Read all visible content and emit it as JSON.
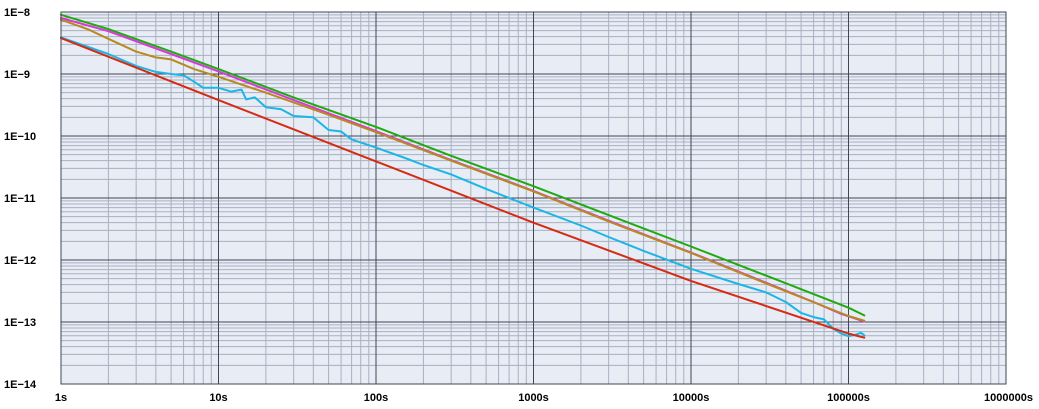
{
  "chart_data": {
    "type": "line",
    "log_x": true,
    "log_y": true,
    "xlim": [
      1,
      1000000
    ],
    "ylim": [
      1e-14,
      1e-08
    ],
    "grid": true,
    "minor_grid": true,
    "legend": "none",
    "x_ticks": [
      {
        "value": 1,
        "label": "1s"
      },
      {
        "value": 10,
        "label": "10s"
      },
      {
        "value": 100,
        "label": "100s"
      },
      {
        "value": 1000,
        "label": "1000s"
      },
      {
        "value": 10000,
        "label": "10000s"
      },
      {
        "value": 100000,
        "label": "100000s"
      },
      {
        "value": 1000000,
        "label": "1000000s"
      }
    ],
    "y_ticks": [
      {
        "value": 1e-08,
        "label": "1E−8"
      },
      {
        "value": 1e-09,
        "label": "1E−9"
      },
      {
        "value": 1e-10,
        "label": "1E−10"
      },
      {
        "value": 1e-11,
        "label": "1E−11"
      },
      {
        "value": 1e-12,
        "label": "1E−12"
      },
      {
        "value": 1e-13,
        "label": "1E−13"
      },
      {
        "value": 1e-14,
        "label": "1E−14"
      }
    ],
    "colors": {
      "plot_background": "#e8ecf5",
      "major_grid": "#3f4654",
      "minor_grid": "#a8b0c2"
    },
    "series": [
      {
        "color": "#1faa10",
        "x": [
          1,
          2,
          5,
          10,
          30,
          100,
          300,
          1000,
          3000,
          10000,
          30000,
          100000,
          126000
        ],
        "y": [
          9e-09,
          5.3e-09,
          2.3e-09,
          1.2e-09,
          4.2e-10,
          1.4e-10,
          4.8e-11,
          1.55e-11,
          5.3e-12,
          1.65e-12,
          5.6e-13,
          1.7e-13,
          1.28e-13
        ]
      },
      {
        "color": "#d838d8",
        "x": [
          1,
          2,
          5,
          10,
          30,
          100,
          300,
          1000,
          3000,
          10000,
          30000,
          60000,
          90000,
          126000
        ],
        "y": [
          8e-09,
          4.9e-09,
          2.1e-09,
          1.1e-09,
          3.8e-10,
          1.2e-10,
          4.1e-11,
          1.3e-11,
          4.3e-12,
          1.32e-12,
          4.3e-13,
          2.1e-13,
          1.35e-13,
          1.02e-13
        ]
      },
      {
        "color": "#b88a1e",
        "x": [
          1,
          1.5,
          2,
          3,
          4,
          5,
          7,
          10,
          20,
          50,
          100,
          300,
          1000,
          3000,
          10000,
          30000,
          100000,
          126000
        ],
        "y": [
          7.5e-09,
          5.2e-09,
          3.7e-09,
          2.3e-09,
          1.85e-09,
          1.72e-09,
          1.2e-09,
          9e-10,
          5e-10,
          2.2e-10,
          1.15e-10,
          4e-11,
          1.28e-11,
          4.2e-12,
          1.3e-12,
          4.2e-13,
          1.25e-13,
          1.05e-13
        ]
      },
      {
        "color": "#1cb6e6",
        "x": [
          1,
          2,
          3,
          4,
          5,
          6,
          7,
          8,
          10,
          12,
          14,
          15,
          17,
          20,
          25,
          30,
          40,
          50,
          60,
          70,
          100,
          150,
          200,
          300,
          500,
          700,
          1000,
          2000,
          3000,
          5000,
          10000,
          20000,
          30000,
          40000,
          50000,
          60000,
          70000,
          80000,
          90000,
          100000,
          110000,
          120000,
          126000
        ],
        "y": [
          3.9e-09,
          2.1e-09,
          1.35e-09,
          1.08e-09,
          1e-09,
          9.5e-10,
          7.5e-10,
          6e-10,
          6e-10,
          5.2e-10,
          5.6e-10,
          3.9e-10,
          4.2e-10,
          2.9e-10,
          2.7e-10,
          2.1e-10,
          2e-10,
          1.25e-10,
          1.18e-10,
          8.8e-11,
          6.5e-11,
          4.5e-11,
          3.4e-11,
          2.4e-11,
          1.4e-11,
          1e-11,
          7e-12,
          3.6e-12,
          2.35e-12,
          1.4e-12,
          7.2e-13,
          4.1e-13,
          3e-13,
          2.1e-13,
          1.4e-13,
          1.2e-13,
          1.1e-13,
          7.8e-14,
          6.5e-14,
          5.9e-14,
          6.2e-14,
          6.7e-14,
          6.1e-14
        ]
      },
      {
        "color": "#d62a12",
        "x": [
          1,
          10,
          100,
          1000,
          10000,
          100000,
          126000
        ],
        "y": [
          3.8e-09,
          3.8e-10,
          3.9e-11,
          4e-12,
          4.6e-13,
          6.5e-14,
          5.6e-14
        ]
      }
    ]
  }
}
